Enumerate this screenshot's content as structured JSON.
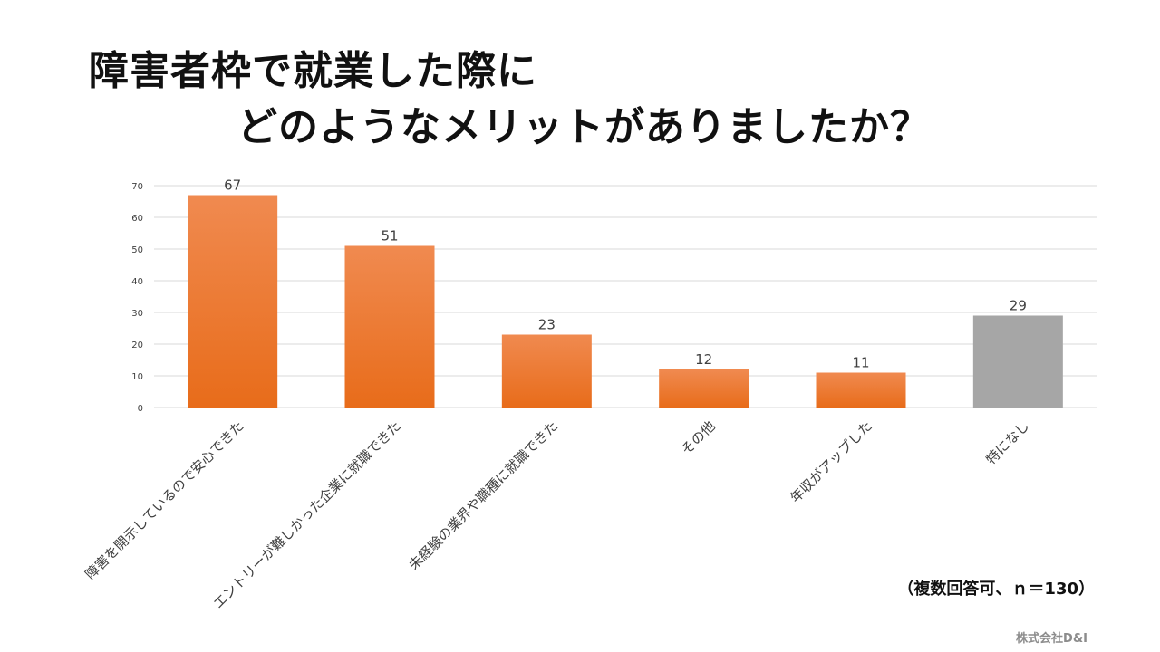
{
  "title": {
    "line1": "障害者枠で就業した際に",
    "line2": "どのようなメリットがありましたか？"
  },
  "note": "（複数回答可、ｎ＝130）",
  "credit": "株式会社D&I",
  "colors": {
    "bar_top": "#F08A50",
    "bar_bottom": "#E86C1A",
    "bar_none": "#A6A6A6",
    "grid": "#D9D9D9",
    "axis_text": "#404040"
  },
  "chart_data": {
    "type": "bar",
    "categories": [
      "障害を開示しているので安心できた",
      "エントリーが難しかった企業に就職できた",
      "未経験の業界や職種に就職できた",
      "その他",
      "年収がアップした",
      "特になし"
    ],
    "values": [
      67,
      51,
      23,
      12,
      11,
      29
    ],
    "data_labels": [
      "67",
      "51",
      "23",
      "12",
      "11",
      "29"
    ],
    "bar_colors": [
      "orange",
      "orange",
      "orange",
      "orange",
      "orange",
      "gray"
    ],
    "ylim": [
      0,
      70
    ],
    "yticks": [
      "0",
      "10",
      "20",
      "30",
      "40",
      "50",
      "60",
      "70"
    ],
    "grid": true,
    "legend": "none",
    "xlabel": "",
    "ylabel": ""
  }
}
